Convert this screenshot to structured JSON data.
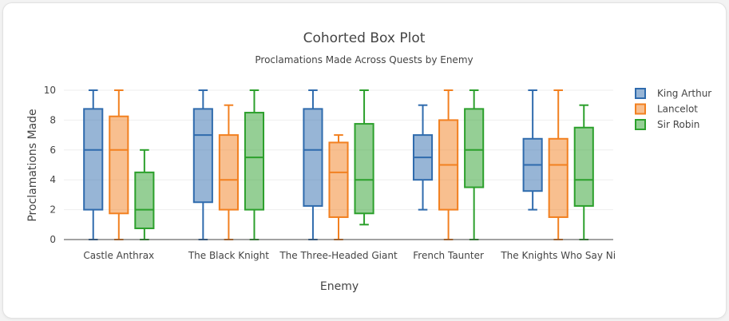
{
  "chart_data": {
    "type": "box",
    "title": "Cohorted Box Plot",
    "subtitle": "Proclamations Made Across Quests by Enemy",
    "xlabel": "Enemy",
    "ylabel": "Proclamations Made",
    "ylim": [
      0,
      10
    ],
    "yticks": [
      0,
      2,
      4,
      6,
      8,
      10
    ],
    "grid": true,
    "legend_position": "top-right",
    "categories": [
      "Castle Anthrax",
      "The Black Knight",
      "The Three-Headed Giant",
      "French Taunter",
      "The Knights Who Say Ni"
    ],
    "series": [
      {
        "name": "King Arthur",
        "color": "#2f6bad",
        "boxes": [
          {
            "min": 0,
            "q1": 2,
            "median": 6,
            "q3": 8.75,
            "max": 10
          },
          {
            "min": 0,
            "q1": 2.5,
            "median": 7,
            "q3": 8.75,
            "max": 10
          },
          {
            "min": 0,
            "q1": 2.25,
            "median": 6,
            "q3": 8.75,
            "max": 10
          },
          {
            "min": 2,
            "q1": 4,
            "median": 5.5,
            "q3": 7,
            "max": 9
          },
          {
            "min": 2,
            "q1": 3.25,
            "median": 5,
            "q3": 6.75,
            "max": 10
          }
        ]
      },
      {
        "name": "Lancelot",
        "color": "#f28020",
        "boxes": [
          {
            "min": 0,
            "q1": 1.75,
            "median": 6,
            "q3": 8.25,
            "max": 10
          },
          {
            "min": 0,
            "q1": 2,
            "median": 4,
            "q3": 7,
            "max": 9
          },
          {
            "min": 0,
            "q1": 1.5,
            "median": 4.5,
            "q3": 6.5,
            "max": 7
          },
          {
            "min": 0,
            "q1": 2,
            "median": 5,
            "q3": 8,
            "max": 10
          },
          {
            "min": 0,
            "q1": 1.5,
            "median": 5,
            "q3": 6.75,
            "max": 10
          }
        ]
      },
      {
        "name": "Sir Robin",
        "color": "#2ca02c",
        "boxes": [
          {
            "min": 0,
            "q1": 0.75,
            "median": 2,
            "q3": 4.5,
            "max": 6
          },
          {
            "min": 0,
            "q1": 2,
            "median": 5.5,
            "q3": 8.5,
            "max": 10
          },
          {
            "min": 1,
            "q1": 1.75,
            "median": 4,
            "q3": 7.75,
            "max": 10
          },
          {
            "min": 0,
            "q1": 3.5,
            "median": 6,
            "q3": 8.75,
            "max": 10
          },
          {
            "min": 0,
            "q1": 2.25,
            "median": 4,
            "q3": 7.5,
            "max": 9
          }
        ]
      }
    ]
  }
}
